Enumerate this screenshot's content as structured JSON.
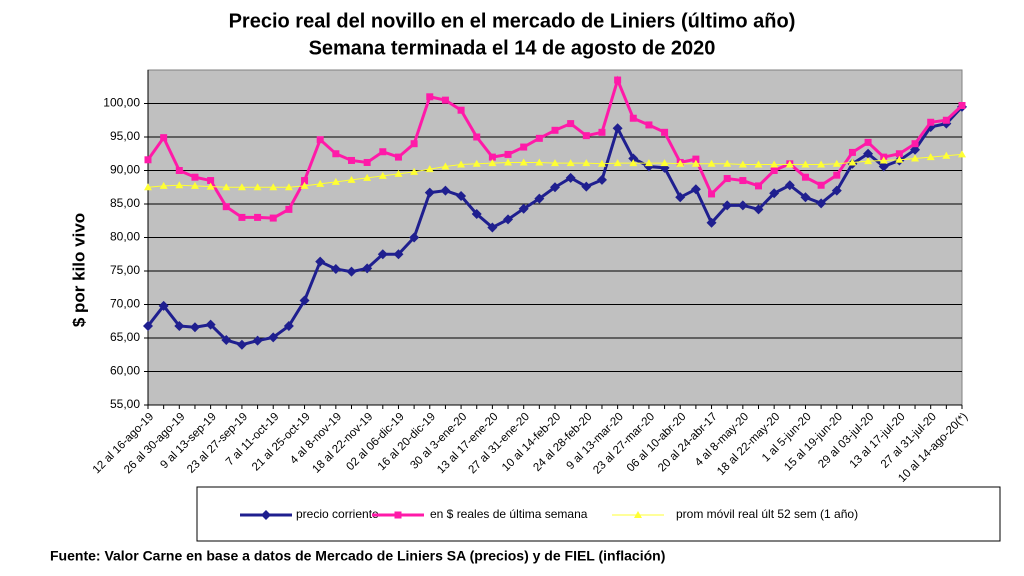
{
  "chart_data": {
    "type": "line",
    "title": [
      "Precio real del novillo en el mercado de Liniers (último año)",
      "Semana terminada el 14 de agosto de 2020"
    ],
    "ylabel": "$ por kilo vivo",
    "source": "Fuente: Valor Carne en base a datos de Mercado de Liniers SA (precios) y de FIEL (inflación)",
    "categories": [
      "12 al 16-ago-19",
      null,
      "26 al 30-ago-19",
      null,
      "9 al 13-sep-19",
      null,
      "23 al 27-sep-19",
      null,
      "7 al 11-oct-19",
      null,
      "21 al 25-oct-19",
      null,
      "4 al 8-nov-19",
      null,
      "18 al 22-nov-19",
      null,
      "02 al 06-dic-19",
      null,
      "16 al 20-dic-19",
      null,
      "30 al 3-ene-20",
      null,
      "13 al 17-ene-20",
      null,
      "27 al 31-ene-20",
      null,
      "10 al 14-feb-20",
      null,
      "24 al 28-feb-20",
      null,
      "9 al 13-mar-20",
      null,
      "23 al 27-mar-20",
      null,
      "06 al 10-abr-20",
      null,
      "20 al 24-abr-17",
      null,
      "4 al 8-may-20",
      null,
      "18 al 22-may-20",
      null,
      "1 al 5-jun-20",
      null,
      "15 al 19-jun-20",
      null,
      "29 al 03-jul-20",
      null,
      "13 al 17-jul-20",
      null,
      "27 al 31-jul-20",
      null,
      "10 al 14-ago-20(*)"
    ],
    "series": [
      {
        "name": "precio corriente",
        "color": "#1f1f8f",
        "marker": "diamond",
        "values": [
          66.8,
          69.8,
          66.8,
          66.6,
          67.0,
          64.7,
          64.0,
          64.6,
          65.1,
          66.8,
          70.6,
          76.4,
          75.3,
          74.9,
          75.4,
          77.5,
          77.5,
          80.0,
          86.7,
          87.0,
          86.2,
          83.5,
          81.5,
          82.7,
          84.3,
          85.8,
          87.5,
          88.9,
          87.6,
          88.6,
          96.3,
          91.8,
          90.6,
          90.4,
          86.0,
          87.2,
          82.2,
          84.8,
          84.8,
          84.2,
          86.6,
          87.8,
          86.0,
          85.1,
          87.0,
          91.0,
          92.5,
          90.6,
          91.5,
          93.1,
          96.5,
          97.0,
          99.5
        ]
      },
      {
        "name": "en $ reales de última semana",
        "color": "#ff1aa8",
        "marker": "square",
        "values": [
          91.6,
          94.9,
          90.0,
          89.0,
          88.5,
          84.6,
          83.0,
          83.0,
          82.9,
          84.2,
          88.5,
          94.6,
          92.5,
          91.5,
          91.2,
          92.8,
          92.0,
          94.0,
          101.0,
          100.5,
          99.0,
          95.0,
          92.0,
          92.4,
          93.5,
          94.8,
          96.0,
          97.0,
          95.2,
          95.7,
          103.5,
          97.8,
          96.8,
          95.7,
          91.2,
          91.7,
          86.5,
          88.8,
          88.5,
          87.7,
          90.0,
          91.0,
          89.0,
          87.8,
          89.3,
          92.7,
          94.2,
          92.0,
          92.5,
          94.0,
          97.2,
          97.5,
          99.7
        ]
      },
      {
        "name": "prom móvil real últ 52 sem (1 año)",
        "color": "#ffff33",
        "marker": "triangle",
        "values": [
          87.5,
          87.7,
          87.8,
          87.7,
          87.6,
          87.5,
          87.5,
          87.5,
          87.5,
          87.5,
          87.7,
          88.0,
          88.3,
          88.6,
          88.9,
          89.2,
          89.5,
          89.8,
          90.2,
          90.6,
          90.9,
          91.0,
          91.1,
          91.2,
          91.2,
          91.2,
          91.1,
          91.1,
          91.1,
          91.0,
          91.1,
          91.1,
          91.1,
          91.1,
          91.0,
          91.0,
          91.0,
          91.0,
          90.9,
          90.9,
          90.9,
          90.9,
          90.9,
          90.9,
          91.0,
          91.2,
          91.4,
          91.5,
          91.6,
          91.8,
          92.0,
          92.2,
          92.4
        ]
      }
    ],
    "ylim": [
      55,
      105
    ],
    "yticks": [
      {
        "value": 55,
        "label": "55,00"
      },
      {
        "value": 60,
        "label": "60,00"
      },
      {
        "value": 65,
        "label": "65,00"
      },
      {
        "value": 70,
        "label": "70,00"
      },
      {
        "value": 75,
        "label": "75,00"
      },
      {
        "value": 80,
        "label": "80,00"
      },
      {
        "value": 85,
        "label": "85,00"
      },
      {
        "value": 90,
        "label": "90,00"
      },
      {
        "value": 95,
        "label": "95,00"
      },
      {
        "value": 100,
        "label": "100,00"
      }
    ],
    "grid": true,
    "legend": "bottom",
    "plot_background": "#c0c0c0"
  }
}
